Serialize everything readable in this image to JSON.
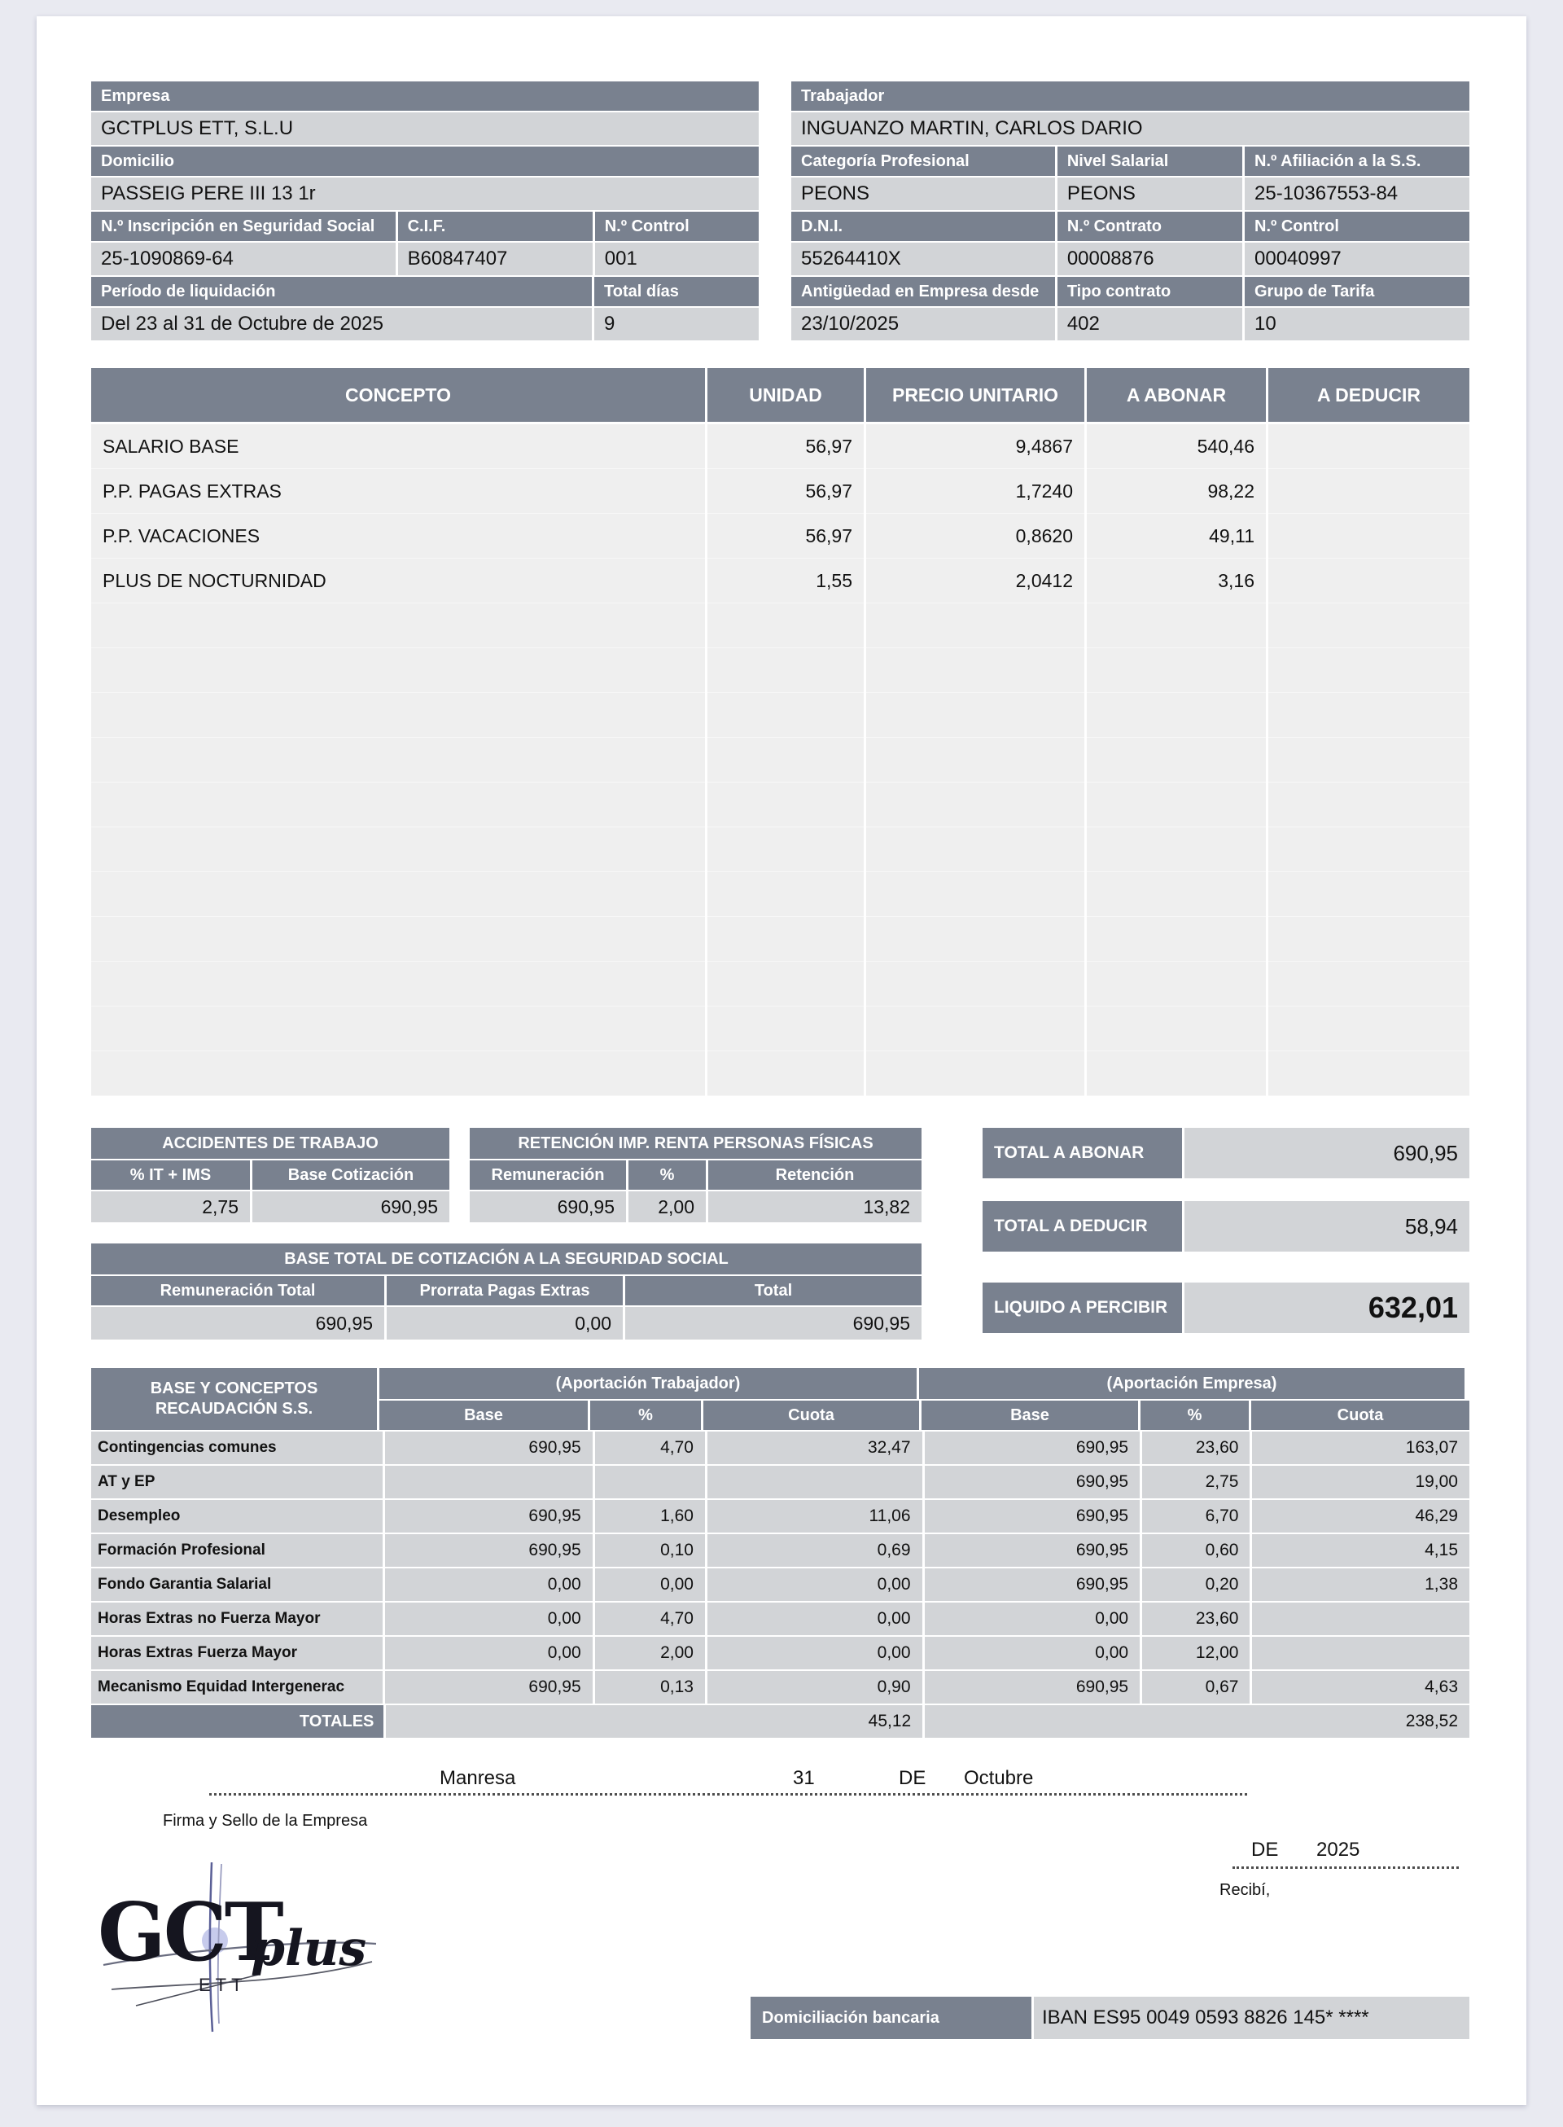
{
  "empresa": {
    "section_title": "Empresa",
    "name": "GCTPLUS ETT, S.L.U",
    "domicilio_label": "Domicilio",
    "domicilio": "PASSEIG PERE III 13 1r",
    "inscripcion_label": "N.º Inscripción en Seguridad Social",
    "inscripcion": "25-1090869-64",
    "cif_label": "C.I.F.",
    "cif": "B60847407",
    "control_label": "N.º Control",
    "control": "001",
    "periodo_label": "Período de liquidación",
    "periodo": "Del 23 al 31 de Octubre de 2025",
    "total_dias_label": "Total días",
    "total_dias": "9"
  },
  "trabajador": {
    "section_title": "Trabajador",
    "name": "INGUANZO MARTIN, CARLOS DARIO",
    "categoria_label": "Categoría Profesional",
    "categoria": "PEONS",
    "nivel_label": "Nivel Salarial",
    "nivel": "PEONS",
    "afiliacion_label": "N.º Afiliación a la S.S.",
    "afiliacion": "25-10367553-84",
    "dni_label": "D.N.I.",
    "dni": "55264410X",
    "contrato_label": "N.º Contrato",
    "contrato": "00008876",
    "control_label": "N.º Control",
    "control": "00040997",
    "antiguedad_label": "Antigüedad en Empresa desde",
    "antiguedad": "23/10/2025",
    "tipo_contrato_label": "Tipo contrato",
    "tipo_contrato": "402",
    "grupo_tarifa_label": "Grupo de Tarifa",
    "grupo_tarifa": "10"
  },
  "conceptos": {
    "headers": [
      "CONCEPTO",
      "UNIDAD",
      "PRECIO UNITARIO",
      "A ABONAR",
      "A DEDUCIR"
    ],
    "rows": [
      {
        "concepto": "SALARIO BASE",
        "unidad": "56,97",
        "precio": "9,4867",
        "abonar": "540,46",
        "deducir": ""
      },
      {
        "concepto": "P.P. PAGAS EXTRAS",
        "unidad": "56,97",
        "precio": "1,7240",
        "abonar": "98,22",
        "deducir": ""
      },
      {
        "concepto": "P.P. VACACIONES",
        "unidad": "56,97",
        "precio": "0,8620",
        "abonar": "49,11",
        "deducir": ""
      },
      {
        "concepto": "PLUS DE NOCTURNIDAD",
        "unidad": "1,55",
        "precio": "2,0412",
        "abonar": "3,16",
        "deducir": ""
      }
    ]
  },
  "accidentes": {
    "title": "ACCIDENTES DE TRABAJO",
    "it_ims_label": "% IT + IMS",
    "it_ims": "2,75",
    "base_cotizacion_label": "Base Cotización",
    "base_cotizacion": "690,95"
  },
  "retencion": {
    "title": "RETENCIÓN IMP. RENTA PERSONAS FÍSICAS",
    "remuneracion_label": "Remuneración",
    "remuneracion": "690,95",
    "pct_label": "%",
    "pct": "2,00",
    "retencion_label": "Retención",
    "retencion": "13,82"
  },
  "base_total": {
    "title": "BASE TOTAL DE COTIZACIÓN A LA SEGURIDAD SOCIAL",
    "remuneracion_total_label": "Remuneración Total",
    "remuneracion_total": "690,95",
    "prorrata_label": "Prorrata Pagas Extras",
    "prorrata": "0,00",
    "total_label": "Total",
    "total": "690,95"
  },
  "totales": {
    "abonar_label": "TOTAL A ABONAR",
    "abonar": "690,95",
    "deducir_label": "TOTAL A DEDUCIR",
    "deducir": "58,94",
    "liquido_label": "LIQUIDO A PERCIBIR",
    "liquido": "632,01"
  },
  "recaudacion": {
    "title_line1": "BASE Y CONCEPTOS",
    "title_line2": "RECAUDACIÓN S.S.",
    "aportacion_trabajador": "(Aportación Trabajador)",
    "aportacion_empresa": "(Aportación Empresa)",
    "col_base": "Base",
    "col_pct": "%",
    "col_cuota": "Cuota",
    "rows": [
      {
        "label": "Contingencias comunes",
        "t_base": "690,95",
        "t_pct": "4,70",
        "t_cuota": "32,47",
        "e_base": "690,95",
        "e_pct": "23,60",
        "e_cuota": "163,07"
      },
      {
        "label": "AT y EP",
        "t_base": "",
        "t_pct": "",
        "t_cuota": "",
        "e_base": "690,95",
        "e_pct": "2,75",
        "e_cuota": "19,00"
      },
      {
        "label": "Desempleo",
        "t_base": "690,95",
        "t_pct": "1,60",
        "t_cuota": "11,06",
        "e_base": "690,95",
        "e_pct": "6,70",
        "e_cuota": "46,29"
      },
      {
        "label": "Formación Profesional",
        "t_base": "690,95",
        "t_pct": "0,10",
        "t_cuota": "0,69",
        "e_base": "690,95",
        "e_pct": "0,60",
        "e_cuota": "4,15"
      },
      {
        "label": "Fondo Garantia Salarial",
        "t_base": "0,00",
        "t_pct": "0,00",
        "t_cuota": "0,00",
        "e_base": "690,95",
        "e_pct": "0,20",
        "e_cuota": "1,38"
      },
      {
        "label": "Horas Extras no Fuerza Mayor",
        "t_base": "0,00",
        "t_pct": "4,70",
        "t_cuota": "0,00",
        "e_base": "0,00",
        "e_pct": "23,60",
        "e_cuota": ""
      },
      {
        "label": "Horas Extras Fuerza Mayor",
        "t_base": "0,00",
        "t_pct": "2,00",
        "t_cuota": "0,00",
        "e_base": "0,00",
        "e_pct": "12,00",
        "e_cuota": ""
      },
      {
        "label": "Mecanismo Equidad Intergenerac",
        "t_base": "690,95",
        "t_pct": "0,13",
        "t_cuota": "0,90",
        "e_base": "690,95",
        "e_pct": "0,67",
        "e_cuota": "4,63"
      }
    ],
    "totales_label": "TOTALES",
    "totales_trabajador": "45,12",
    "totales_empresa": "238,52"
  },
  "firma": {
    "city": "Manresa",
    "day": "31",
    "de1": "DE",
    "month": "Octubre",
    "firma_label": "Firma y Sello de la Empresa",
    "de2": "DE",
    "year": "2025",
    "recibi": "Recibí,",
    "logo_gct": "GCT",
    "logo_plus": "plus",
    "logo_ett": "ETT"
  },
  "banco": {
    "label": "Domiciliación bancaria",
    "iban": "IBAN ES95 0049 0593 8826 145* ****"
  },
  "colors": {
    "header": "#79818f",
    "cell": "#d2d4d7",
    "table_body": "#efefef"
  }
}
